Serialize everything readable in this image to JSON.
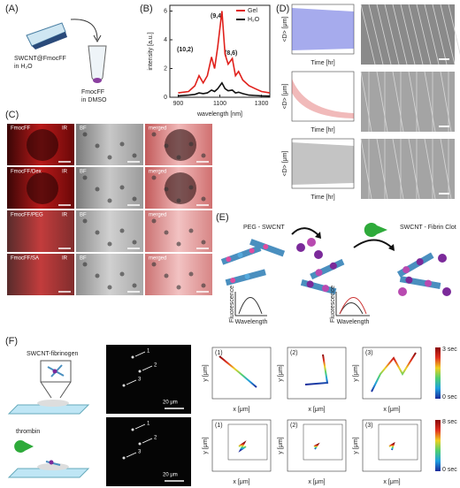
{
  "panel_labels": [
    "(A)",
    "(B)",
    "(C)",
    "(D)",
    "(E)",
    "(F)"
  ],
  "panel_a": {
    "suspension_lines": [
      "SWCNT@FmocFF",
      "in H₂O"
    ],
    "solvent_lines": [
      "FmocFF",
      "in DMSO"
    ]
  },
  "chart_data": {
    "type": "line",
    "xlabel": "wavelength [nm]",
    "ylabel": "intensity [a.u.]",
    "x": [
      900,
      950,
      980,
      1000,
      1020,
      1040,
      1060,
      1075,
      1090,
      1110,
      1125,
      1140,
      1160,
      1175,
      1190,
      1210,
      1240,
      1270,
      1300,
      1340
    ],
    "series": [
      {
        "name": "Gel",
        "color": "#e0201b",
        "values": [
          0.3,
          0.4,
          0.8,
          1.5,
          1.0,
          1.5,
          2.8,
          2.0,
          3.5,
          6.0,
          3.0,
          2.3,
          2.7,
          1.5,
          1.8,
          1.2,
          0.8,
          0.6,
          0.4,
          0.3
        ]
      },
      {
        "name": "H₂O",
        "color": "#111111",
        "values": [
          0.1,
          0.15,
          0.2,
          0.3,
          0.25,
          0.3,
          0.5,
          0.4,
          0.6,
          1.0,
          0.6,
          0.45,
          0.5,
          0.3,
          0.35,
          0.25,
          0.15,
          0.12,
          0.1,
          0.08
        ]
      }
    ],
    "annotations": [
      "(9,4)",
      "(10,2)",
      "(8,6)"
    ],
    "xlim": [
      860,
      1340
    ],
    "ylim": [
      0,
      6.4
    ],
    "xticks": [
      900,
      1100,
      1300
    ],
    "yticks": [
      0,
      2,
      4,
      6
    ],
    "legend": "upper right"
  },
  "panel_c": {
    "rows": [
      "FmocFF",
      "FmocFF/Dex",
      "FmocFF/PEG",
      "FmocFF/SA"
    ],
    "channels": [
      "IR",
      "BF",
      "merged"
    ]
  },
  "panel_d": {
    "ylabel": "<D> [μm]",
    "xlabel": "Time [hr]"
  },
  "panel_e": {
    "left": "PEG - SWCNT",
    "right": "SWCNT - Fibrin Clot",
    "spectrum_y": "Fluorescence",
    "spectrum_x": "Wavelength"
  },
  "panel_f": {
    "top_label": "SWCNT-fibrinogen",
    "bottom_label": "thrombin",
    "scale_bar": "20 μm",
    "spot_ids": [
      "1",
      "2",
      "3"
    ],
    "plot_ids": [
      "(1)",
      "(2)",
      "(3)"
    ],
    "xlabel": "x [μm]",
    "ylabel": "y [μm]",
    "colorbar_top": [
      "3 sec",
      "0 sec"
    ],
    "colorbar_bottom": [
      "8 sec",
      "0 sec"
    ]
  }
}
